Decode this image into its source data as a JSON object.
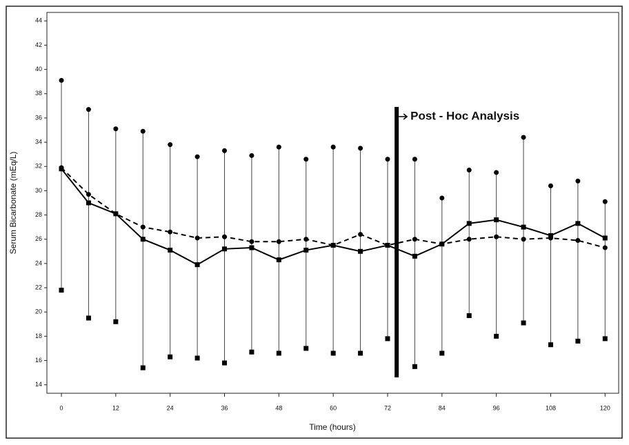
{
  "chart_data": {
    "type": "line",
    "x_label": "Time  (hours)",
    "y_label": "Serum Bicarbonate (mEq/L)",
    "x": [
      0,
      6,
      12,
      18,
      24,
      30,
      36,
      42,
      48,
      54,
      60,
      66,
      72,
      78,
      84,
      90,
      96,
      102,
      108,
      114,
      120
    ],
    "series": [
      {
        "color": "#000000",
        "dashed": false,
        "marker": "square",
        "values": [
          31.8,
          29.0,
          28.1,
          26.0,
          25.1,
          23.9,
          25.2,
          25.3,
          24.3,
          25.1,
          25.5,
          25.0,
          25.5,
          24.6,
          25.6,
          27.3,
          27.6,
          27.0,
          26.3,
          27.3,
          26.1
        ]
      },
      {
        "color": "#000000",
        "dashed": true,
        "marker": "circle",
        "values": [
          31.9,
          29.7,
          28.1,
          27.0,
          26.6,
          26.1,
          26.2,
          25.8,
          25.8,
          26.0,
          25.5,
          26.4,
          25.5,
          26.0,
          25.6,
          26.0,
          26.2,
          26.0,
          26.1,
          25.9,
          25.3
        ]
      }
    ],
    "error_bars": {
      "upper": [
        39.1,
        36.7,
        35.1,
        34.9,
        33.8,
        32.8,
        33.3,
        32.9,
        33.6,
        32.6,
        33.6,
        33.5,
        32.6,
        32.6,
        29.4,
        31.7,
        31.5,
        34.4,
        30.4,
        30.8,
        29.1
      ],
      "lower": [
        21.8,
        19.5,
        19.2,
        15.4,
        16.3,
        16.2,
        15.8,
        16.7,
        16.6,
        17.0,
        16.6,
        16.6,
        17.8,
        15.5,
        16.6,
        19.7,
        18.0,
        19.1,
        17.3,
        17.6,
        17.8
      ]
    },
    "annotation": {
      "text": "Post - Hoc Analysis",
      "x": 74
    },
    "xlim": [
      -3.2,
      123
    ],
    "ylim": [
      13.3,
      44.7
    ],
    "xticks": [
      0,
      12,
      24,
      36,
      48,
      60,
      72,
      84,
      96,
      108,
      120
    ],
    "yticks": [
      14,
      16,
      18,
      20,
      22,
      24,
      26,
      28,
      30,
      32,
      34,
      36,
      38,
      40,
      42,
      44
    ],
    "grid": false
  }
}
